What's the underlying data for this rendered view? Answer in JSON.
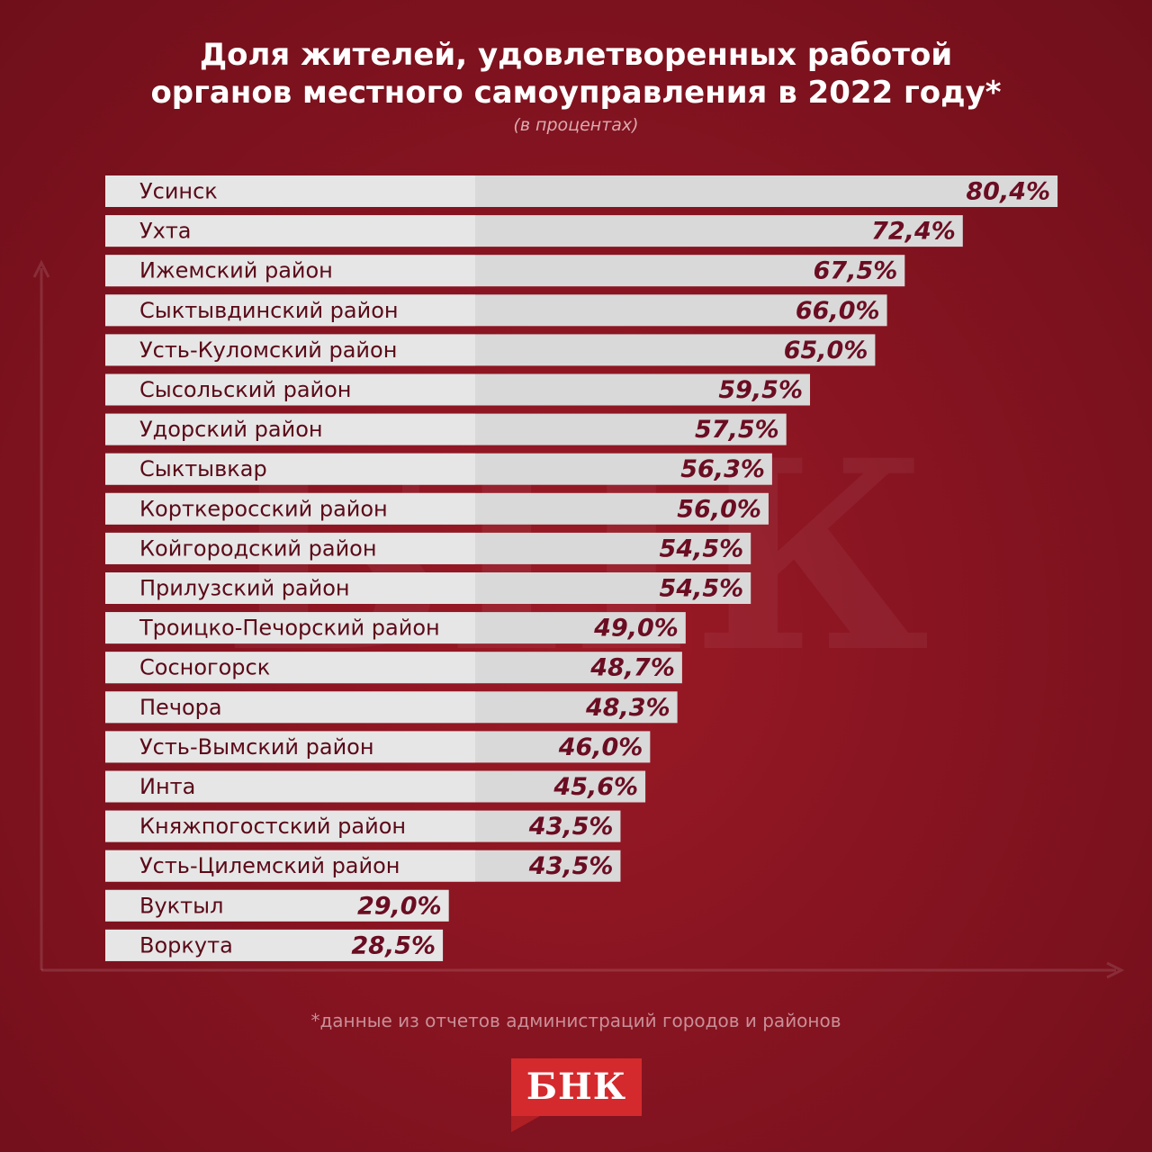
{
  "title_line1": "Доля жителей, удовлетворенных работой",
  "title_line2": "органов местного самоуправления в 2022 году*",
  "subtitle": "(в процентах)",
  "footnote": "*данные из отчетов администраций городов и районов",
  "logo_text": "БНК",
  "watermark_text": "БНК",
  "colors": {
    "background": "#871421",
    "bar": "#d9d9d9",
    "bar_highlight": "#f0f0f0",
    "value_text": "#6b0d22",
    "label_text": "#5a0a18",
    "logo": "#d42a2d"
  },
  "chart_data": {
    "type": "bar",
    "orientation": "horizontal",
    "title": "Доля жителей, удовлетворенных работой органов местного самоуправления в 2022 году*",
    "subtitle": "(в процентах)",
    "categories": [
      "Усинск",
      "Ухта",
      "Ижемский район",
      "Сыктывдинский район",
      "Усть-Куломский район",
      "Сысольский район",
      "Удорский район",
      "Сыктывкар",
      "Корткеросский район",
      "Койгородский район",
      "Прилузский район",
      "Троицко-Печорский район",
      "Сосногорск",
      "Печора",
      "Усть-Вымский район",
      "Инта",
      "Княжпогостский район",
      "Усть-Цилемский район",
      "Вуктыл",
      "Воркута"
    ],
    "values": [
      80.4,
      72.4,
      67.5,
      66.0,
      65.0,
      59.5,
      57.5,
      56.3,
      56.0,
      54.5,
      54.5,
      49.0,
      48.7,
      48.3,
      46.0,
      45.6,
      43.5,
      43.5,
      29.0,
      28.5
    ],
    "value_labels": [
      "80,4%",
      "72,4%",
      "67,5%",
      "66,0%",
      "65,0%",
      "59,5%",
      "57,5%",
      "56,3%",
      "56,0%",
      "54,5%",
      "54,5%",
      "49,0%",
      "48,7%",
      "48,3%",
      "46,0%",
      "45,6%",
      "43,5%",
      "43,5%",
      "29,0%",
      "28,5%"
    ],
    "unit": "%",
    "xlabel": "",
    "ylabel": "",
    "grid": false,
    "legend": "none"
  }
}
